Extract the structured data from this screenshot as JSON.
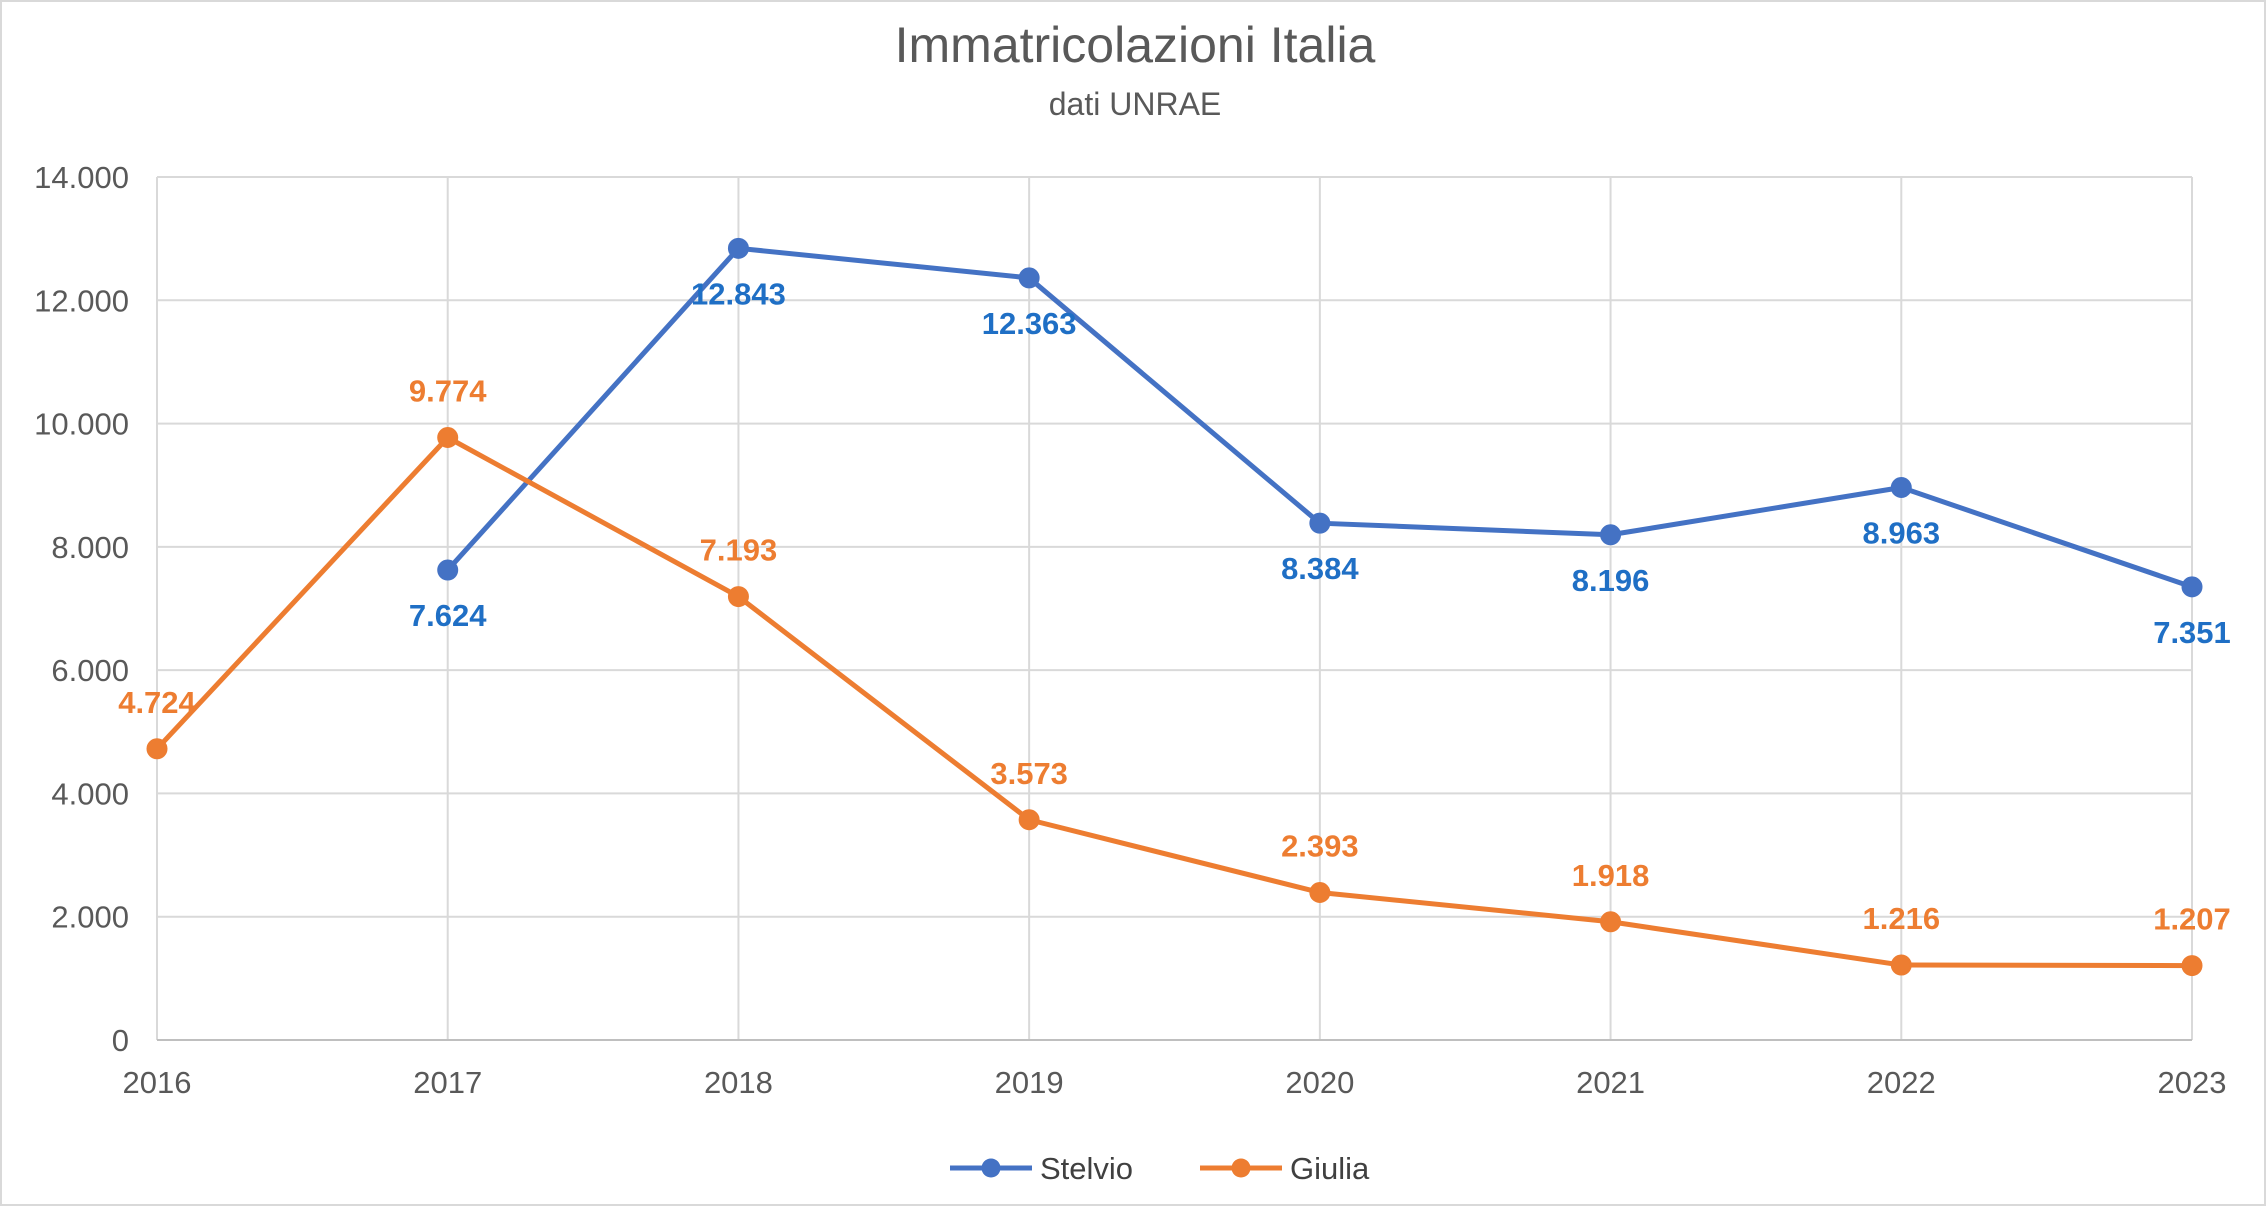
{
  "chart_data": {
    "type": "line",
    "title": "Immatricolazioni Italia",
    "subtitle": "dati UNRAE",
    "x": [
      "2016",
      "2017",
      "2018",
      "2019",
      "2020",
      "2021",
      "2022",
      "2023"
    ],
    "ylim": [
      0,
      14000
    ],
    "yticks": [
      "0",
      "2.000",
      "4.000",
      "6.000",
      "8.000",
      "10.000",
      "12.000",
      "14.000"
    ],
    "ytick_values": [
      0,
      2000,
      4000,
      6000,
      8000,
      10000,
      12000,
      14000
    ],
    "grid": true,
    "legend_position": "bottom",
    "series": [
      {
        "name": "Stelvio",
        "color": "#4472C4",
        "label_color": "#1F6FC5",
        "values": [
          null,
          7624,
          12843,
          12363,
          8384,
          8196,
          8963,
          7351
        ],
        "labels": [
          null,
          "7.624",
          "12.843",
          "12.363",
          "8.384",
          "8.196",
          "8.963",
          "7.351"
        ],
        "label_position": "below"
      },
      {
        "name": "Giulia",
        "color": "#ED7D31",
        "label_color": "#ED7D31",
        "values": [
          4724,
          9774,
          7193,
          3573,
          2393,
          1918,
          1216,
          1207
        ],
        "labels": [
          "4.724",
          "9.774",
          "7.193",
          "3.573",
          "2.393",
          "1.918",
          "1.216",
          "1.207"
        ],
        "label_position": "above"
      }
    ]
  }
}
